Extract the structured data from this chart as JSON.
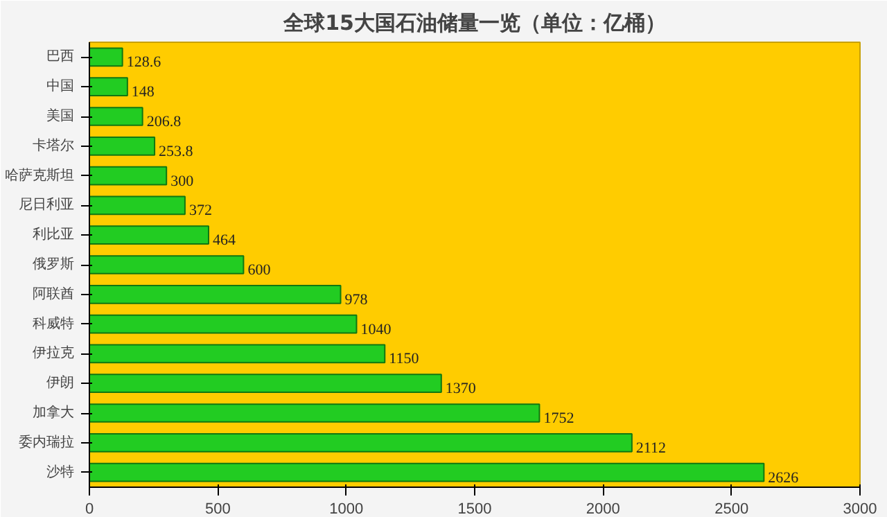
{
  "chart_data": {
    "type": "bar",
    "orientation": "horizontal",
    "title": "全球15大国石油储量一览（单位：亿桶）",
    "categories": [
      "巴西",
      "中国",
      "美国",
      "卡塔尔",
      "哈萨克斯坦",
      "尼日利亚",
      "利比亚",
      "俄罗斯",
      "阿联酋",
      "科威特",
      "伊拉克",
      "伊朗",
      "加拿大",
      "委内瑞拉",
      "沙特"
    ],
    "values": [
      128.6,
      148,
      206.8,
      253.8,
      300,
      372,
      464,
      600,
      978,
      1040,
      1150,
      1370,
      1752,
      2112,
      2626
    ],
    "color": "#22cc22",
    "data_labels": true,
    "xlim": [
      0,
      3000
    ],
    "xticks": [
      0,
      500,
      1000,
      1500,
      2000,
      2500,
      3000
    ],
    "grid": false
  }
}
